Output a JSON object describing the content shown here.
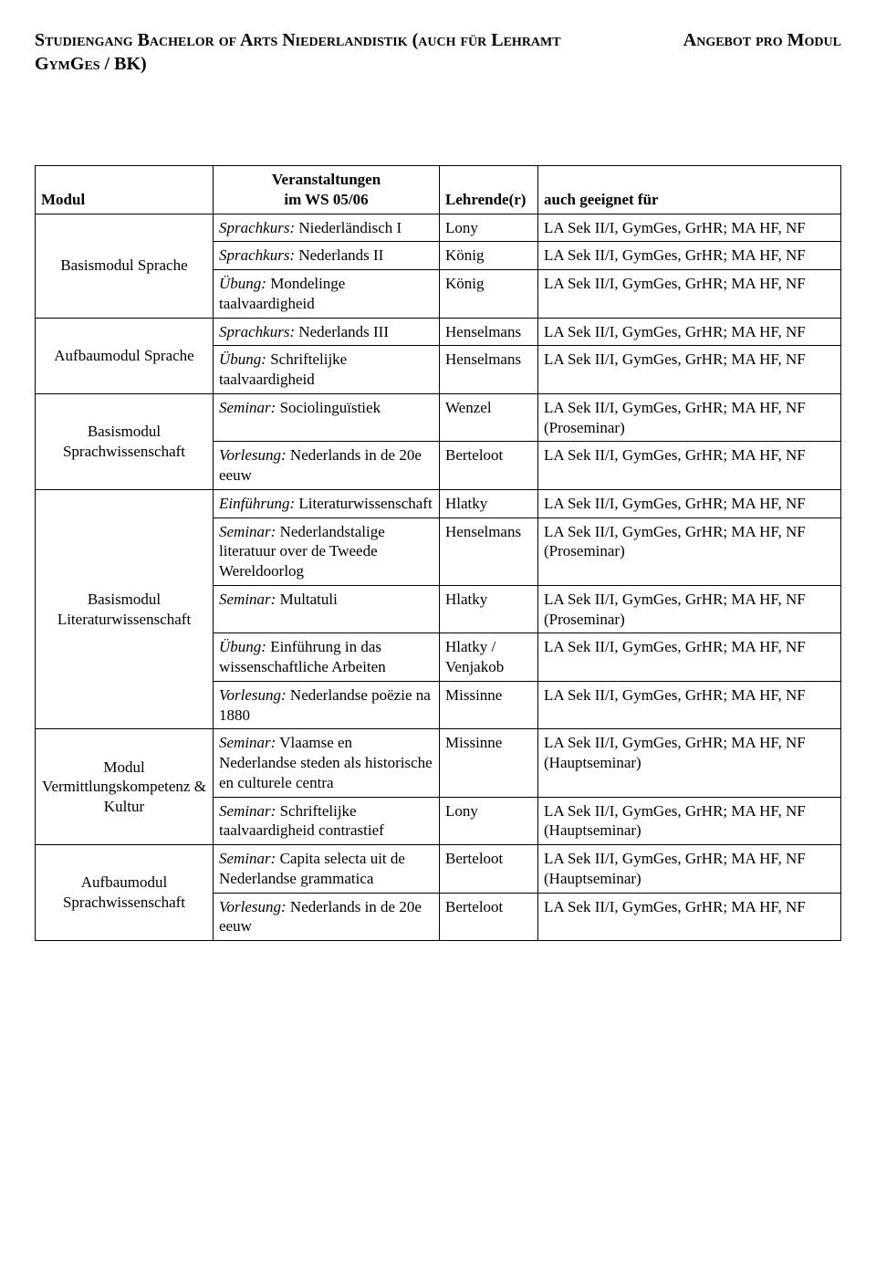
{
  "header": {
    "left": "Studiengang Bachelor of Arts Niederlandistik (auch für Lehramt GymGes / BK)",
    "right": "Angebot pro Modul"
  },
  "table": {
    "head": {
      "modul": "Modul",
      "veranstaltungen_line1": "Veranstaltungen",
      "veranstaltungen_line2": "im WS 05/06",
      "lehrende": "Lehrende(r)",
      "geeignet": "auch geeignet für"
    },
    "groups": [
      {
        "modul": "Basismodul Sprache",
        "rows": [
          {
            "v_it": "Sprachkurs:",
            "v_rest": " Niederländisch I",
            "l": "Lony",
            "g": "LA Sek II/I, GymGes, GrHR; MA HF, NF"
          },
          {
            "v_it": "Sprachkurs:",
            "v_rest": " Nederlands II",
            "l": "König",
            "g": "LA Sek II/I, GymGes, GrHR; MA HF, NF"
          },
          {
            "v_it": "Übung:",
            "v_rest": " Mondelinge taalvaardigheid",
            "l": "König",
            "g": "LA Sek II/I, GymGes, GrHR; MA HF, NF"
          }
        ]
      },
      {
        "modul": "Aufbaumodul Sprache",
        "rows": [
          {
            "v_it": "Sprachkurs:",
            "v_rest": " Nederlands III",
            "l": "Henselmans",
            "g": "LA Sek II/I, GymGes, GrHR; MA HF, NF"
          },
          {
            "v_it": "Übung:",
            "v_rest": " Schriftelijke taalvaardigheid",
            "l": "Henselmans",
            "g": "LA Sek II/I, GymGes, GrHR; MA HF, NF"
          }
        ]
      },
      {
        "modul": "Basismodul Sprachwissenschaft",
        "rows": [
          {
            "v_it": "Seminar:",
            "v_rest": " Sociolinguïstiek",
            "l": "Wenzel",
            "g": "LA Sek II/I, GymGes, GrHR; MA HF, NF (Proseminar)"
          },
          {
            "v_it": "Vorlesung:",
            "v_rest": " Nederlands in de 20e eeuw",
            "l": "Berteloot",
            "g": "LA Sek II/I, GymGes, GrHR; MA HF, NF"
          }
        ]
      },
      {
        "modul": "Basismodul Literaturwissenschaft",
        "rows": [
          {
            "v_it": "Einführung:",
            "v_rest": " Literaturwissenschaft",
            "l": "Hlatky",
            "g": "LA Sek II/I, GymGes, GrHR; MA HF, NF"
          },
          {
            "v_it": "Seminar:",
            "v_rest": " Nederlandstalige literatuur over de Tweede Wereldoorlog",
            "l": "Henselmans",
            "g": "LA Sek II/I, GymGes, GrHR; MA HF, NF (Proseminar)"
          },
          {
            "v_it": "Seminar:",
            "v_rest": " Multatuli",
            "l": "Hlatky",
            "g": "LA Sek II/I, GymGes, GrHR; MA HF, NF (Proseminar)"
          },
          {
            "v_it": "Übung:",
            "v_rest": " Einführung in das wissenschaftliche Arbeiten",
            "l": "Hlatky / Venjakob",
            "g": "LA Sek II/I, GymGes, GrHR; MA HF, NF"
          },
          {
            "v_it": "Vorlesung:",
            "v_rest": " Nederlandse poëzie na 1880",
            "l": "Missinne",
            "g": "LA Sek II/I, GymGes, GrHR; MA HF, NF"
          }
        ]
      },
      {
        "modul": "Modul Vermittlungskompetenz & Kultur",
        "rows": [
          {
            "v_it": "Seminar:",
            "v_rest": " Vlaamse en Nederlandse steden als historische en culturele centra",
            "l": "Missinne",
            "g": "LA Sek II/I, GymGes, GrHR; MA HF, NF (Hauptseminar)"
          },
          {
            "v_it": "Seminar:",
            "v_rest": " Schriftelijke taalvaardigheid contrastief",
            "l": "Lony",
            "g": "LA Sek II/I, GymGes, GrHR; MA HF, NF (Hauptseminar)"
          }
        ]
      },
      {
        "modul": "Aufbaumodul Sprachwissenschaft",
        "rows": [
          {
            "v_it": "Seminar:",
            "v_rest": " Capita selecta uit de Nederlandse grammatica",
            "l": "Berteloot",
            "g": "LA Sek II/I, GymGes, GrHR; MA HF, NF (Hauptseminar)"
          },
          {
            "v_it": "Vorlesung:",
            "v_rest": " Nederlands in de 20e eeuw",
            "l": "Berteloot",
            "g": "LA Sek II/I, GymGes, GrHR; MA HF, NF"
          }
        ]
      }
    ]
  }
}
